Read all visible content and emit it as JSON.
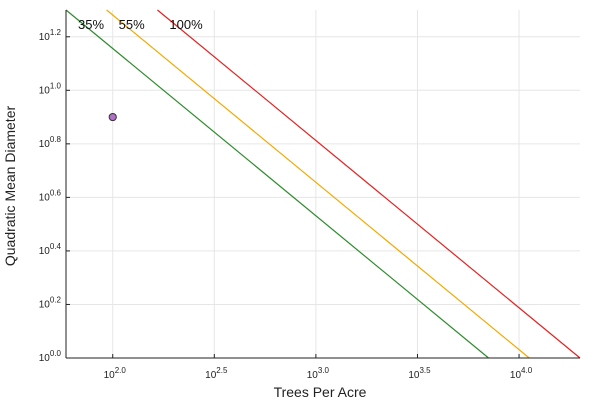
{
  "chart_data": {
    "type": "line",
    "title": "",
    "xlabel": "Trees Per Acre",
    "ylabel": "Quadratic Mean Diameter",
    "x_scale": "log10",
    "y_scale": "log10",
    "xlim_log10": [
      1.77,
      4.3
    ],
    "ylim_log10": [
      0.0,
      1.3
    ],
    "x_ticks": [
      {
        "base": "10",
        "exp": "2.0",
        "value": 2.0
      },
      {
        "base": "10",
        "exp": "2.5",
        "value": 2.5
      },
      {
        "base": "10",
        "exp": "3.0",
        "value": 3.0
      },
      {
        "base": "10",
        "exp": "3.5",
        "value": 3.5
      },
      {
        "base": "10",
        "exp": "4.0",
        "value": 4.0
      }
    ],
    "y_ticks": [
      {
        "base": "10",
        "exp": "0.0",
        "value": 0.0
      },
      {
        "base": "10",
        "exp": "0.2",
        "value": 0.2
      },
      {
        "base": "10",
        "exp": "0.4",
        "value": 0.4
      },
      {
        "base": "10",
        "exp": "0.6",
        "value": 0.6
      },
      {
        "base": "10",
        "exp": "0.8",
        "value": 0.8
      },
      {
        "base": "10",
        "exp": "1.0",
        "value": 1.0
      },
      {
        "base": "10",
        "exp": "1.2",
        "value": 1.2
      }
    ],
    "grid": true,
    "series": [
      {
        "name": "35%",
        "color": "#2e8b2e",
        "points_log10": [
          [
            1.77,
            1.3
          ],
          [
            3.85,
            0.0
          ]
        ]
      },
      {
        "name": "55%",
        "color": "#f2a900",
        "points_log10": [
          [
            1.97,
            1.3
          ],
          [
            4.05,
            0.0
          ]
        ]
      },
      {
        "name": "100%",
        "color": "#e32222",
        "points_log10": [
          [
            2.22,
            1.3
          ],
          [
            4.3,
            0.0
          ]
        ]
      }
    ],
    "scatter": [
      {
        "x_log10": 2.0,
        "y_log10": 0.9,
        "fill": "#b070c8",
        "stroke": "#333333"
      }
    ]
  }
}
